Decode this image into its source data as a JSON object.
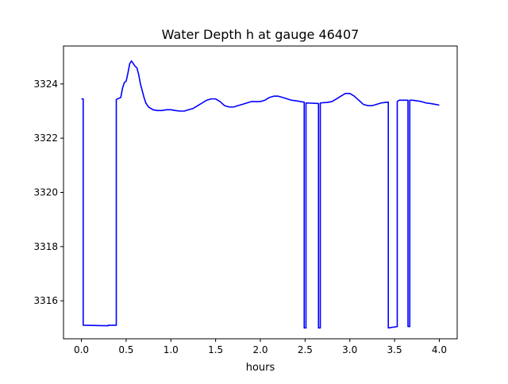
{
  "chart_data": {
    "type": "line",
    "title": "Water Depth h at gauge 46407",
    "xlabel": "hours",
    "ylabel": "",
    "xlim": [
      -0.2,
      4.2
    ],
    "ylim": [
      3314.6,
      3325.4
    ],
    "xticks": [
      0.0,
      0.5,
      1.0,
      1.5,
      2.0,
      2.5,
      3.0,
      3.5,
      4.0
    ],
    "xtick_labels": [
      "0.0",
      "0.5",
      "1.0",
      "1.5",
      "2.0",
      "2.5",
      "3.0",
      "3.5",
      "4.0"
    ],
    "yticks": [
      3316,
      3318,
      3320,
      3322,
      3324
    ],
    "ytick_labels": [
      "3316",
      "3318",
      "3320",
      "3322",
      "3324"
    ],
    "grid": false,
    "legend": "none",
    "series": [
      {
        "color": "#0000ff",
        "x": [
          0.0,
          0.02,
          0.02,
          0.3,
          0.3,
          0.39,
          0.39,
          0.44,
          0.46,
          0.48,
          0.5,
          0.52,
          0.54,
          0.56,
          0.58,
          0.6,
          0.62,
          0.64,
          0.66,
          0.68,
          0.7,
          0.72,
          0.75,
          0.8,
          0.85,
          0.9,
          0.95,
          1.0,
          1.05,
          1.1,
          1.15,
          1.2,
          1.25,
          1.3,
          1.35,
          1.4,
          1.45,
          1.5,
          1.55,
          1.6,
          1.65,
          1.7,
          1.75,
          1.8,
          1.85,
          1.9,
          1.95,
          2.0,
          2.05,
          2.1,
          2.15,
          2.2,
          2.25,
          2.3,
          2.35,
          2.4,
          2.45,
          2.49,
          2.49,
          2.51,
          2.51,
          2.65,
          2.65,
          2.67,
          2.67,
          2.75,
          2.8,
          2.85,
          2.9,
          2.95,
          3.0,
          3.05,
          3.1,
          3.15,
          3.2,
          3.25,
          3.3,
          3.35,
          3.4,
          3.43,
          3.43,
          3.53,
          3.53,
          3.55,
          3.6,
          3.65,
          3.65,
          3.67,
          3.67,
          3.7,
          3.75,
          3.8,
          3.85,
          3.9,
          3.95,
          4.0
        ],
        "y": [
          3323.45,
          3323.45,
          3315.1,
          3315.08,
          3315.1,
          3315.1,
          3323.43,
          3323.5,
          3323.85,
          3324.05,
          3324.1,
          3324.4,
          3324.75,
          3324.85,
          3324.75,
          3324.65,
          3324.6,
          3324.35,
          3324.0,
          3323.75,
          3323.5,
          3323.3,
          3323.15,
          3323.05,
          3323.02,
          3323.02,
          3323.05,
          3323.05,
          3323.02,
          3323.0,
          3323.0,
          3323.05,
          3323.1,
          3323.2,
          3323.3,
          3323.4,
          3323.45,
          3323.45,
          3323.35,
          3323.2,
          3323.15,
          3323.15,
          3323.2,
          3323.25,
          3323.3,
          3323.35,
          3323.35,
          3323.35,
          3323.4,
          3323.5,
          3323.55,
          3323.55,
          3323.5,
          3323.45,
          3323.4,
          3323.38,
          3323.35,
          3323.33,
          3315.0,
          3315.0,
          3323.3,
          3323.28,
          3315.0,
          3315.0,
          3323.3,
          3323.32,
          3323.35,
          3323.45,
          3323.55,
          3323.65,
          3323.65,
          3323.55,
          3323.4,
          3323.25,
          3323.2,
          3323.2,
          3323.25,
          3323.3,
          3323.32,
          3323.33,
          3315.0,
          3315.05,
          3323.35,
          3323.4,
          3323.4,
          3323.4,
          3315.05,
          3315.05,
          3323.4,
          3323.4,
          3323.38,
          3323.35,
          3323.3,
          3323.28,
          3323.25,
          3323.22
        ]
      }
    ]
  }
}
